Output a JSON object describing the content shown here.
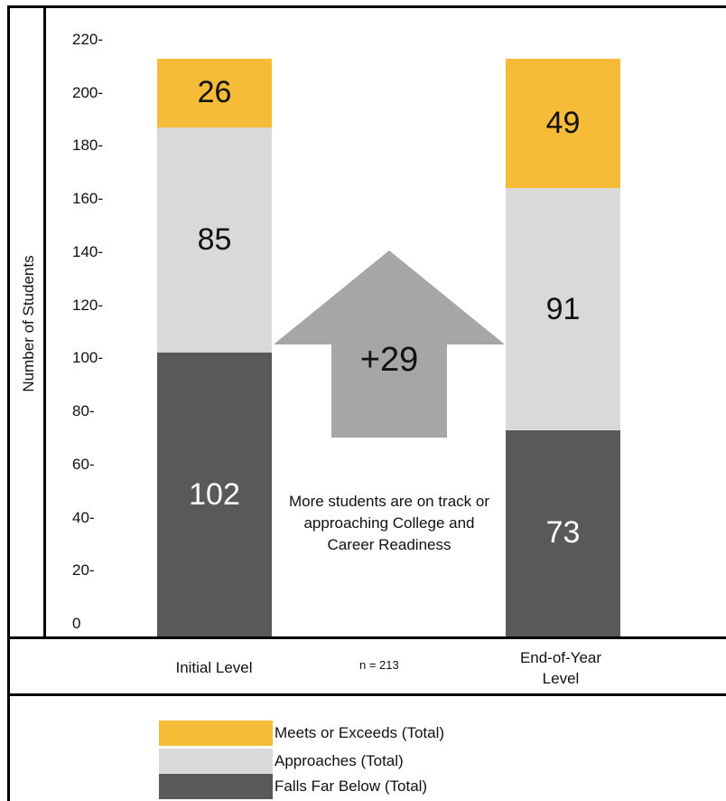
{
  "chart_data": {
    "type": "bar",
    "stacked": true,
    "categories": [
      "Initial Level",
      "End-of-Year Level"
    ],
    "series": [
      {
        "name": "Falls Far Below (Total)",
        "values": [
          102,
          73
        ],
        "color": "#595959",
        "label_color": "#ffffff"
      },
      {
        "name": "Approaches (Total)",
        "values": [
          85,
          91
        ],
        "color": "#d9d9d9",
        "label_color": "#111111"
      },
      {
        "name": "Meets or Exceeds (Total)",
        "values": [
          26,
          49
        ],
        "color": "#f6bc37",
        "label_color": "#111111"
      }
    ],
    "ylabel": "Number of Students",
    "ylim": [
      0,
      220
    ],
    "yticks": [
      "0",
      "20-",
      "40-",
      "60-",
      "80-",
      "100-",
      "120-",
      "140-",
      "160-",
      "180-",
      "200-",
      "220-"
    ],
    "n_label": "n = 213",
    "arrow_label": "+29",
    "arrow_color": "#a6a6a6",
    "annotation": "More students are on track or approaching College and Career Readiness",
    "legend": {
      "items": [
        {
          "label": "Meets or Exceeds (Total)",
          "color": "#f6bc37"
        },
        {
          "label": "Approaches (Total)",
          "color": "#d9d9d9"
        },
        {
          "label": "Falls Far Below (Total)",
          "color": "#595959"
        }
      ]
    }
  }
}
